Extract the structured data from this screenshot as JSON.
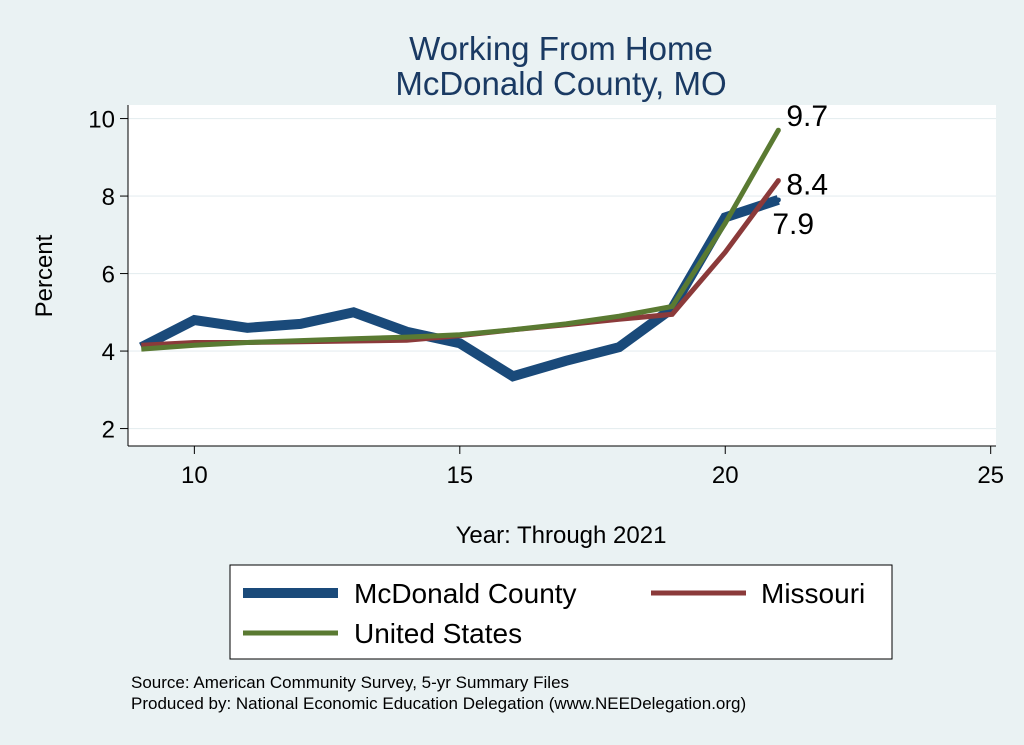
{
  "chart_data": {
    "type": "line",
    "title": [
      "Working From Home",
      "McDonald County, MO"
    ],
    "xlabel": "Year: Through 2021",
    "ylabel": "Percent",
    "xlim": [
      8.75,
      25.1
    ],
    "ylim": [
      1.55,
      10.35
    ],
    "xticks": [
      10,
      15,
      20,
      25
    ],
    "yticks": [
      2,
      4,
      6,
      8,
      10
    ],
    "grid": true,
    "series": [
      {
        "name": "McDonald County",
        "color": "#1a4a7a",
        "x": [
          9,
          10,
          11,
          12,
          13,
          14,
          15,
          16,
          17,
          18,
          19,
          20,
          21
        ],
        "y": [
          4.1,
          4.8,
          4.6,
          4.7,
          5.0,
          4.5,
          4.2,
          3.35,
          3.75,
          4.1,
          5.1,
          7.45,
          7.9
        ],
        "end_label": "7.9"
      },
      {
        "name": "Missouri",
        "color": "#8b3a3a",
        "x": [
          9,
          10,
          11,
          12,
          13,
          14,
          15,
          16,
          17,
          18,
          19,
          20,
          21
        ],
        "y": [
          4.15,
          4.22,
          4.22,
          4.24,
          4.26,
          4.28,
          4.4,
          4.55,
          4.68,
          4.82,
          4.95,
          6.55,
          8.4
        ],
        "end_label": "8.4"
      },
      {
        "name": "United States",
        "color": "#5a7a32",
        "x": [
          9,
          10,
          11,
          12,
          13,
          14,
          15,
          16,
          17,
          18,
          19,
          20,
          21
        ],
        "y": [
          4.05,
          4.15,
          4.22,
          4.27,
          4.32,
          4.36,
          4.42,
          4.55,
          4.7,
          4.9,
          5.15,
          7.3,
          9.7
        ],
        "end_label": "9.7"
      }
    ],
    "legend": {
      "placement": "bottom",
      "entries": [
        "McDonald County",
        "Missouri",
        "United States"
      ]
    },
    "source_lines": [
      "Source: American Community Survey, 5-yr Summary Files",
      "Produced by: National Economic Education Delegation (www.NEEDelegation.org)"
    ]
  }
}
